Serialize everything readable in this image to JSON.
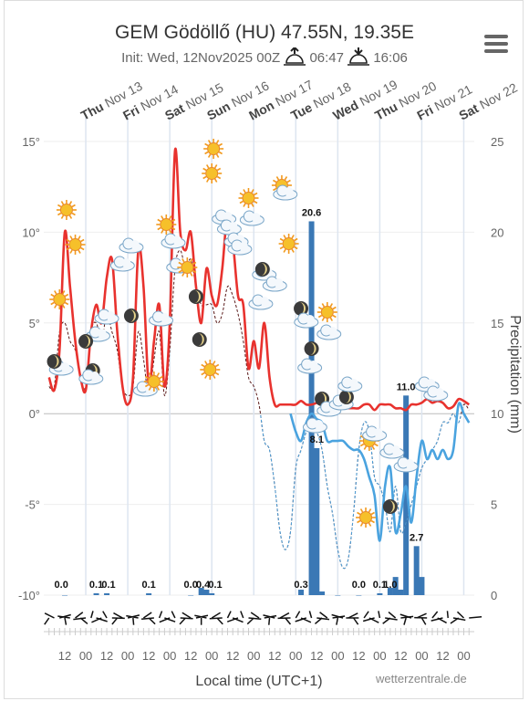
{
  "header": {
    "title": "GEM Gödöllő (HU) 47.55N, 19.35E",
    "init_label": "Init: Wed, 12Nov2025 00Z",
    "sunrise": "06:47",
    "sunset": "16:06",
    "credit": "wetterzentrale.de"
  },
  "chart_data": {
    "type": "line",
    "title": "GEM Gödöllő (HU) 47.55N, 19.35E",
    "subtitle": "Init: Wed, 12Nov2025 00Z",
    "xlabel": "Local time (UTC+1)",
    "ylabel_right": "Precipitation (mm)",
    "y_left_range": [
      -10,
      15
    ],
    "y_left_ticks": [
      "15°",
      "10°",
      "5°",
      "0°",
      "-5°",
      "-10°"
    ],
    "y_right_range": [
      0,
      25
    ],
    "y_right_ticks": [
      "25",
      "20",
      "15",
      "10",
      "5",
      "0"
    ],
    "days": [
      {
        "wd": "Thu",
        "d": "Nov 13"
      },
      {
        "wd": "Fri",
        "d": "Nov 14"
      },
      {
        "wd": "Sat",
        "d": "Nov 15"
      },
      {
        "wd": "Sun",
        "d": "Nov 16"
      },
      {
        "wd": "Mon",
        "d": "Nov 17"
      },
      {
        "wd": "Tue",
        "d": "Nov 18"
      },
      {
        "wd": "Wed",
        "d": "Nov 19"
      },
      {
        "wd": "Thu",
        "d": "Nov 20"
      },
      {
        "wd": "Fri",
        "d": "Nov 21"
      },
      {
        "wd": "Sat",
        "d": "Nov 22"
      }
    ],
    "x_ticks": [
      "12",
      "00",
      "12",
      "00",
      "12",
      "00",
      "12",
      "00",
      "12",
      "00",
      "12",
      "00",
      "12",
      "00",
      "12",
      "00",
      "12",
      "00",
      "12",
      "00"
    ],
    "series": [
      {
        "name": "temperature",
        "hours": [
          3,
          6,
          9,
          12,
          15,
          18,
          21,
          24,
          27,
          30,
          33,
          36,
          39,
          42,
          45,
          48,
          51,
          54,
          57,
          60,
          63,
          66,
          69,
          72,
          75,
          78,
          81,
          84,
          87,
          90,
          93,
          96,
          99,
          102,
          105,
          108,
          111,
          114,
          117,
          120,
          123,
          126,
          129,
          132,
          135,
          138,
          141,
          144,
          147,
          150,
          153,
          156,
          159,
          162,
          165,
          168,
          171,
          174,
          177,
          180,
          183,
          186,
          189,
          192,
          195,
          198,
          201,
          204,
          207,
          210,
          213,
          216,
          219,
          222,
          225,
          228,
          231,
          234,
          237,
          240,
          243
        ],
        "values": [
          2.0,
          1.3,
          3.5,
          10.0,
          7.0,
          4.0,
          2.0,
          1.3,
          4.5,
          6.0,
          5.0,
          7.5,
          8.5,
          4.5,
          1.5,
          0.5,
          2.0,
          9.0,
          7.0,
          1.5,
          4.0,
          6.0,
          1.5,
          5.0,
          14.5,
          10.0,
          9.0,
          10.0,
          7.0,
          5.0,
          8.0,
          6.5,
          6.0,
          8.0,
          11.0,
          9.5,
          6.5,
          6.0,
          2.5,
          4.0,
          2.5,
          5.0,
          2.0,
          0.5,
          0.5,
          0.5,
          0.5,
          0.5,
          0.7,
          0.5,
          0.5,
          0.6,
          0.8,
          0.5,
          0.3,
          0.5,
          0.3,
          0.3,
          0.3,
          0.3,
          0.5,
          0.5,
          0.2,
          0.5,
          0.5,
          0.5,
          0.3,
          0.3,
          0.2,
          0.5,
          0.5,
          0.6,
          0.8,
          0.6,
          0.7,
          0.6,
          0.3,
          0.4,
          0.8,
          0.7,
          0.5
        ]
      },
      {
        "name": "temperature-below-zero",
        "hours": [
          141,
          144,
          147,
          150,
          153,
          156,
          159,
          162,
          165,
          168,
          171,
          174,
          177,
          180,
          183,
          186,
          189,
          192,
          195,
          198,
          201,
          204,
          207,
          210,
          213,
          216,
          219,
          222,
          225,
          228,
          231,
          234,
          237,
          240,
          243
        ],
        "values": [
          0.0,
          -1.0,
          -1.5,
          -0.5,
          0.0,
          -0.3,
          -0.5,
          -1.5,
          -1.5,
          -1.5,
          -1.5,
          -1.8,
          -2.0,
          -2.0,
          -2.5,
          -3.5,
          -4.5,
          -7.0,
          -4.0,
          -3.0,
          -6.5,
          -5.5,
          -4.0,
          -6.0,
          -3.5,
          -1.5,
          -2.5,
          -2.0,
          -2.5,
          -2.0,
          -2.5,
          -2.0,
          0.5,
          0.0,
          -0.5
        ]
      },
      {
        "name": "dew-point",
        "hours": [
          3,
          6,
          9,
          12,
          15,
          18,
          21,
          24,
          27,
          30,
          33,
          36,
          39,
          42,
          45,
          48,
          51,
          54,
          57,
          60,
          63,
          66,
          69,
          72,
          75,
          78,
          81,
          84,
          87,
          90,
          93,
          96,
          99,
          102,
          105,
          108,
          111,
          114,
          117,
          120,
          123,
          126,
          129,
          132,
          135,
          138,
          141,
          144,
          147,
          150,
          153,
          156,
          159,
          162,
          165,
          168,
          171,
          174,
          177,
          180,
          183,
          186,
          189,
          192,
          195,
          198,
          201,
          204,
          207,
          210,
          213,
          216,
          219,
          222,
          225,
          228,
          231,
          234,
          237,
          240,
          243
        ],
        "values": [
          1.5,
          1.5,
          4.5,
          5.0,
          4.0,
          3.5,
          2.0,
          1.5,
          4.5,
          5.0,
          4.0,
          5.5,
          4.5,
          3.5,
          1.5,
          1.0,
          1.5,
          4.5,
          3.0,
          1.0,
          3.0,
          4.5,
          1.0,
          3.5,
          8.0,
          9.0,
          8.0,
          8.5,
          7.0,
          6.0,
          6.0,
          6.0,
          5.0,
          5.5,
          7.0,
          6.5,
          5.5,
          4.0,
          2.0,
          1.5,
          0.5,
          -1.5,
          -2.0,
          -4.0,
          -6.5,
          -7.5,
          -6.5,
          -3.0,
          -2.0,
          -1.0,
          -0.5,
          -1.0,
          -2.0,
          -4.0,
          -5.5,
          -7.5,
          -8.5,
          -8.0,
          -5.5,
          -2.0,
          -0.5,
          -1.0,
          -3.5,
          -4.0,
          -5.0,
          -6.5,
          -4.0,
          -6.5,
          -6.0,
          -5.0,
          -4.0,
          -3.0,
          -2.5,
          -2.0,
          -1.5,
          -0.5,
          -0.5,
          0.0,
          -0.5,
          0.5,
          0.2
        ]
      },
      {
        "name": "precipitation",
        "hours": [
          12,
          30,
          36,
          60,
          84,
          90,
          93,
          96,
          147,
          153,
          156,
          159,
          168,
          180,
          192,
          198,
          201,
          204,
          207,
          213,
          216
        ],
        "values": [
          0.0,
          0.1,
          0.1,
          0.1,
          0.0,
          0.4,
          0.3,
          0.1,
          0.3,
          20.6,
          8.1,
          0.2,
          0.0,
          0.0,
          0.1,
          0.4,
          1.0,
          0.3,
          11.0,
          2.7,
          1.0
        ]
      }
    ],
    "bar_labels": [
      {
        "h": 10,
        "text": "0.0"
      },
      {
        "h": 30,
        "text": "0.1"
      },
      {
        "h": 37,
        "text": "0.1"
      },
      {
        "h": 60,
        "text": "0.1"
      },
      {
        "h": 84,
        "text": "0.0"
      },
      {
        "h": 91,
        "text": "0.4"
      },
      {
        "h": 98,
        "text": "0.1"
      },
      {
        "h": 147,
        "text": "0.3"
      },
      {
        "h": 153,
        "text": "20.6"
      },
      {
        "h": 156,
        "text": "8.1"
      },
      {
        "h": 180,
        "text": "0.0"
      },
      {
        "h": 192,
        "text": "0.1"
      },
      {
        "h": 198,
        "text": "1.0"
      },
      {
        "h": 207,
        "text": "11.0"
      },
      {
        "h": 213,
        "text": "2.7"
      }
    ],
    "legend": "none",
    "grid": true
  },
  "colors": {
    "temp_above": "#e8322e",
    "temp_below": "#4aa3df",
    "dew_above": "#5a1a1a",
    "dew_below": "#4aa3df",
    "precip": "#3a78b5",
    "grid": "#dde5f0",
    "zero": "#bbbbbb"
  }
}
